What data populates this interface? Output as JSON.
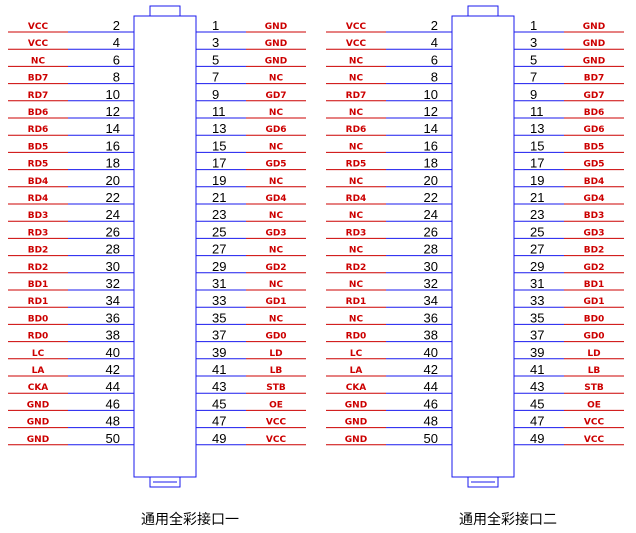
{
  "colors": {
    "signal": "#cc0000",
    "pin_number": "#000000",
    "outline": "#1a1aee"
  },
  "connectors": [
    {
      "caption": "通用全彩接口一",
      "left_pins": [
        "2",
        "4",
        "6",
        "8",
        "10",
        "12",
        "14",
        "16",
        "18",
        "20",
        "22",
        "24",
        "26",
        "28",
        "30",
        "32",
        "34",
        "36",
        "38",
        "40",
        "42",
        "44",
        "46",
        "48",
        "50"
      ],
      "left_signals": [
        "VCC",
        "VCC",
        "NC",
        "BD7",
        "RD7",
        "BD6",
        "RD6",
        "BD5",
        "RD5",
        "BD4",
        "RD4",
        "BD3",
        "RD3",
        "BD2",
        "RD2",
        "BD1",
        "RD1",
        "BD0",
        "RD0",
        "LC",
        "LA",
        "CKA",
        "GND",
        "GND",
        "GND"
      ],
      "right_pins": [
        "1",
        "3",
        "5",
        "7",
        "9",
        "11",
        "13",
        "15",
        "17",
        "19",
        "21",
        "23",
        "25",
        "27",
        "29",
        "31",
        "33",
        "35",
        "37",
        "39",
        "41",
        "43",
        "45",
        "47",
        "49"
      ],
      "right_signals": [
        "GND",
        "GND",
        "GND",
        "NC",
        "GD7",
        "NC",
        "GD6",
        "NC",
        "GD5",
        "NC",
        "GD4",
        "NC",
        "GD3",
        "NC",
        "GD2",
        "NC",
        "GD1",
        "NC",
        "GD0",
        "LD",
        "LB",
        "STB",
        "OE",
        "VCC",
        "VCC"
      ]
    },
    {
      "caption": "通用全彩接口二",
      "left_pins": [
        "2",
        "4",
        "6",
        "8",
        "10",
        "12",
        "14",
        "16",
        "18",
        "20",
        "22",
        "24",
        "26",
        "28",
        "30",
        "32",
        "34",
        "36",
        "38",
        "40",
        "42",
        "44",
        "46",
        "48",
        "50"
      ],
      "left_signals": [
        "VCC",
        "VCC",
        "NC",
        "NC",
        "RD7",
        "NC",
        "RD6",
        "NC",
        "RD5",
        "NC",
        "RD4",
        "NC",
        "RD3",
        "NC",
        "RD2",
        "NC",
        "RD1",
        "NC",
        "RD0",
        "LC",
        "LA",
        "CKA",
        "GND",
        "GND",
        "GND"
      ],
      "right_pins": [
        "1",
        "3",
        "5",
        "7",
        "9",
        "11",
        "13",
        "15",
        "17",
        "19",
        "21",
        "23",
        "25",
        "27",
        "29",
        "31",
        "33",
        "35",
        "37",
        "39",
        "41",
        "43",
        "45",
        "47",
        "49"
      ],
      "right_signals": [
        "GND",
        "GND",
        "GND",
        "BD7",
        "GD7",
        "BD6",
        "GD6",
        "BD5",
        "GD5",
        "BD4",
        "GD4",
        "BD3",
        "GD3",
        "BD2",
        "GD2",
        "BD1",
        "GD1",
        "BD0",
        "GD0",
        "LD",
        "LB",
        "STB",
        "OE",
        "VCC",
        "VCC"
      ]
    }
  ]
}
